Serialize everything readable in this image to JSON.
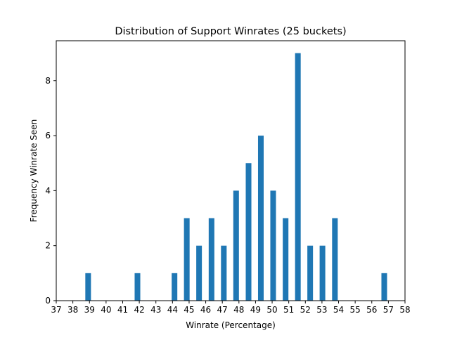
{
  "chart_data": {
    "type": "bar",
    "title": "Distribution of Support Winrates (25 buckets)",
    "xlabel": "Winrate (Percentage)",
    "ylabel": "Frequency Winrate Seen",
    "xlim": [
      37,
      58
    ],
    "ylim": [
      0,
      9.45
    ],
    "x_ticks": [
      37,
      38,
      39,
      40,
      41,
      42,
      43,
      44,
      45,
      46,
      47,
      48,
      49,
      50,
      51,
      52,
      53,
      54,
      55,
      56,
      57,
      58
    ],
    "y_ticks": [
      0,
      2,
      4,
      6,
      8
    ],
    "bar_width": 0.34,
    "bar_color": "#1f77b4",
    "grid": false,
    "bars": [
      {
        "x": 38.92,
        "value": 1
      },
      {
        "x": 41.89,
        "value": 1
      },
      {
        "x": 44.12,
        "value": 1
      },
      {
        "x": 44.86,
        "value": 3
      },
      {
        "x": 45.6,
        "value": 2
      },
      {
        "x": 46.35,
        "value": 3
      },
      {
        "x": 47.09,
        "value": 2
      },
      {
        "x": 47.83,
        "value": 4
      },
      {
        "x": 48.58,
        "value": 5
      },
      {
        "x": 49.32,
        "value": 6
      },
      {
        "x": 50.06,
        "value": 4
      },
      {
        "x": 50.81,
        "value": 3
      },
      {
        "x": 51.55,
        "value": 9
      },
      {
        "x": 52.29,
        "value": 2
      },
      {
        "x": 53.03,
        "value": 2
      },
      {
        "x": 53.78,
        "value": 3
      },
      {
        "x": 56.75,
        "value": 1
      }
    ]
  }
}
